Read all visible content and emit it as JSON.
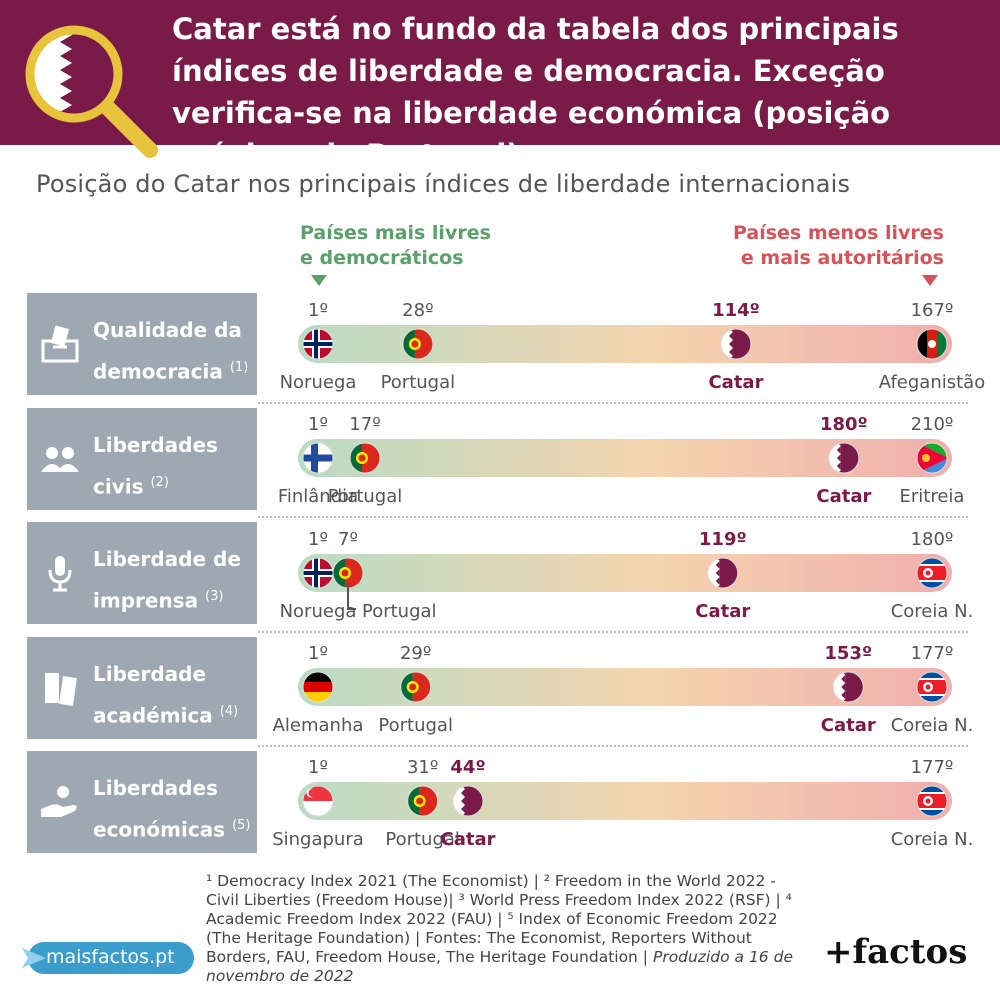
{
  "header": {
    "title": "Catar está no fundo da tabela dos principais índices de liberdade e democracia. Exceção verifica-se na liberdade económica (posição próxima de Portugal)."
  },
  "subtitle": "Posição do Catar nos principais índices de liberdade internacionais",
  "legend": {
    "free_line1": "Países mais livres",
    "free_line2": "e democráticos",
    "unfree_line1": "Países menos livres",
    "unfree_line2": "e mais autoritários"
  },
  "colors": {
    "header_bg": "#7a1a48",
    "free_green": "#5aa06a",
    "unfree_red": "#d5545a",
    "label_box": "#9ea8b3",
    "qatar_maroon": "#7a1a48"
  },
  "rows": [
    {
      "label_line1": "Qualidade da",
      "label_line2": "democracia",
      "note": "(1)",
      "icon": "ballot-box-icon"
    },
    {
      "label_line1": "Liberdades",
      "label_line2": "civis",
      "note": "(2)",
      "icon": "people-icon"
    },
    {
      "label_line1": "Liberdade de",
      "label_line2": "imprensa",
      "note": "(3)",
      "icon": "microphone-icon"
    },
    {
      "label_line1": "Liberdade",
      "label_line2": "académica",
      "note": "(4)",
      "icon": "books-icon"
    },
    {
      "label_line1": "Liberdades",
      "label_line2": "económicas",
      "note": "(5)",
      "icon": "hand-coin-icon"
    }
  ],
  "chart_data": {
    "type": "scatter",
    "title": "Posição do Catar nos principais índices de liberdade internacionais",
    "series": [
      {
        "index": "Qualidade da democracia",
        "total": 167,
        "points": [
          {
            "country": "Noruega",
            "rank": 1,
            "rank_label": "1º",
            "flag": "norway"
          },
          {
            "country": "Portugal",
            "rank": 28,
            "rank_label": "28º",
            "flag": "portugal"
          },
          {
            "country": "Catar",
            "rank": 114,
            "rank_label": "114º",
            "flag": "qatar",
            "highlight": true
          },
          {
            "country": "Afeganistão",
            "rank": 167,
            "rank_label": "167º",
            "flag": "afghanistan"
          }
        ]
      },
      {
        "index": "Liberdades civis",
        "total": 210,
        "points": [
          {
            "country": "Finlândia",
            "rank": 1,
            "rank_label": "1º",
            "flag": "finland"
          },
          {
            "country": "Portugal",
            "rank": 17,
            "rank_label": "17º",
            "flag": "portugal"
          },
          {
            "country": "Catar",
            "rank": 180,
            "rank_label": "180º",
            "flag": "qatar",
            "highlight": true
          },
          {
            "country": "Eritreia",
            "rank": 210,
            "rank_label": "210º",
            "flag": "eritrea"
          }
        ]
      },
      {
        "index": "Liberdade de imprensa",
        "total": 180,
        "points": [
          {
            "country": "Noruega",
            "rank": 1,
            "rank_label": "1º",
            "flag": "norway"
          },
          {
            "country": "Portugal",
            "rank": 7,
            "rank_label": "7º",
            "flag": "portugal"
          },
          {
            "country": "Catar",
            "rank": 119,
            "rank_label": "119º",
            "flag": "qatar",
            "highlight": true
          },
          {
            "country": "Coreia N.",
            "rank": 180,
            "rank_label": "180º",
            "flag": "north-korea"
          }
        ]
      },
      {
        "index": "Liberdade académica",
        "total": 177,
        "points": [
          {
            "country": "Alemanha",
            "rank": 1,
            "rank_label": "1º",
            "flag": "germany"
          },
          {
            "country": "Portugal",
            "rank": 29,
            "rank_label": "29º",
            "flag": "portugal"
          },
          {
            "country": "Catar",
            "rank": 153,
            "rank_label": "153º",
            "flag": "qatar",
            "highlight": true
          },
          {
            "country": "Coreia N.",
            "rank": 177,
            "rank_label": "177º",
            "flag": "north-korea"
          }
        ]
      },
      {
        "index": "Liberdades económicas",
        "total": 177,
        "points": [
          {
            "country": "Singapura",
            "rank": 1,
            "rank_label": "1º",
            "flag": "singapore"
          },
          {
            "country": "Portugal",
            "rank": 31,
            "rank_label": "31º",
            "flag": "portugal"
          },
          {
            "country": "Catar",
            "rank": 44,
            "rank_label": "44º",
            "flag": "qatar",
            "highlight": true
          },
          {
            "country": "Coreia N.",
            "rank": 177,
            "rank_label": "177º",
            "flag": "north-korea"
          }
        ]
      }
    ]
  },
  "footer": {
    "sources": "¹ Democracy Index 2021 (The Economist) | ² Freedom in the World 2022 - Civil Liberties (Freedom House)| ³ World Press Freedom Index 2022 (RSF) | ⁴ Academic Freedom Index 2022 (FAU) | ⁵ Index of Economic Freedom 2022 (The Heritage Foundation) | Fontes: The Economist, Reporters Without Borders, FAU, Freedom House, The Heritage Foundation |",
    "date": "Produzido a 16 de novembro de 2022",
    "site": "maisfactos.pt",
    "brand": "+factos"
  }
}
